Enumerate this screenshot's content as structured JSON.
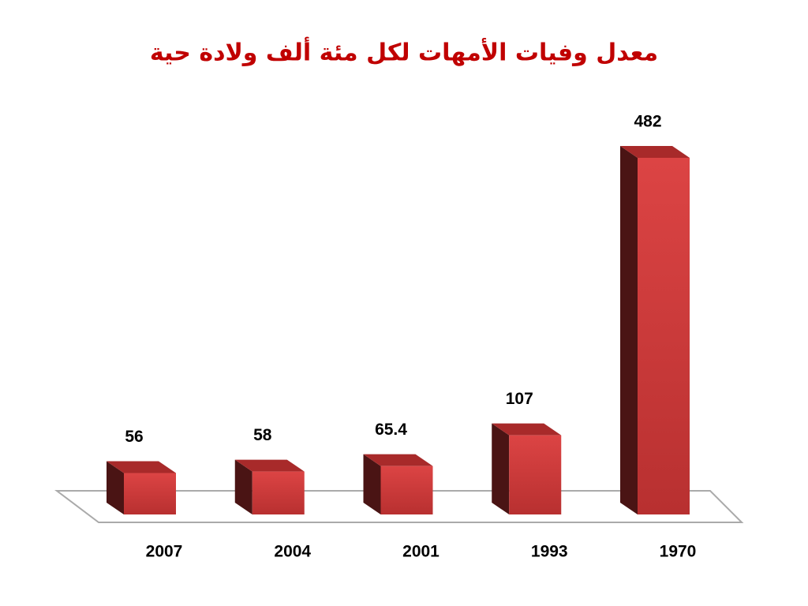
{
  "chart_data": {
    "type": "bar3d",
    "title": "معدل وفيات الأمهات لكل مئة ألف ولادة حية",
    "categories": [
      "2007",
      "2004",
      "2001",
      "1993",
      "1970"
    ],
    "values": [
      56,
      58,
      65.4,
      107,
      482
    ],
    "color": "#d43c3c"
  }
}
